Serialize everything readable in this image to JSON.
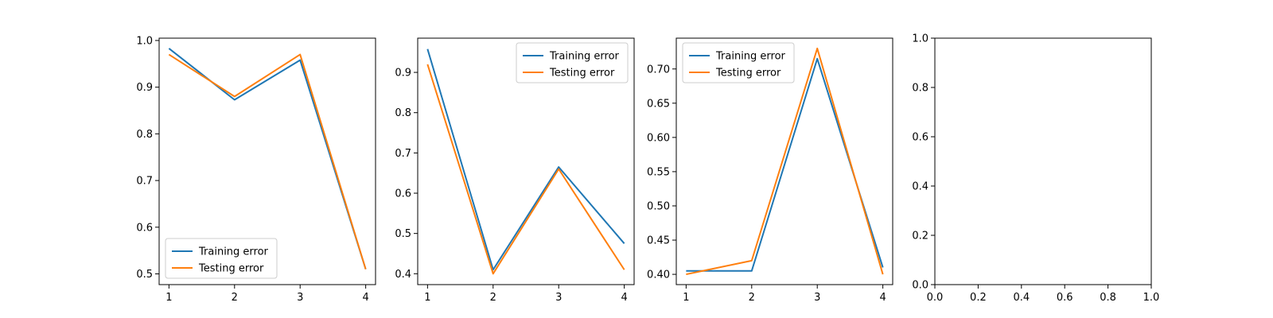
{
  "chart_data": [
    {
      "type": "line",
      "x": [
        1,
        2,
        3,
        4
      ],
      "xlim": [
        0.85,
        4.15
      ],
      "ylim": [
        0.477,
        1.005
      ],
      "xticks": [
        1,
        2,
        3,
        4
      ],
      "yticks": [
        0.5,
        0.6,
        0.7,
        0.8,
        0.9,
        1.0
      ],
      "ytick_labels": [
        "0.5",
        "0.6",
        "0.7",
        "0.8",
        "0.9",
        "1.0"
      ],
      "xtick_labels": [
        "1",
        "2",
        "3",
        "4"
      ],
      "legend_position": "lower-left",
      "series": [
        {
          "name": "Training error",
          "color": "#1f77b4",
          "values": [
            0.983,
            0.873,
            0.958,
            0.51
          ]
        },
        {
          "name": "Testing error",
          "color": "#ff7f0e",
          "values": [
            0.97,
            0.88,
            0.97,
            0.51
          ]
        }
      ]
    },
    {
      "type": "line",
      "x": [
        1,
        2,
        3,
        4
      ],
      "xlim": [
        0.85,
        4.15
      ],
      "ylim": [
        0.373,
        0.985
      ],
      "xticks": [
        1,
        2,
        3,
        4
      ],
      "yticks": [
        0.4,
        0.5,
        0.6,
        0.7,
        0.8,
        0.9
      ],
      "ytick_labels": [
        "0.4",
        "0.5",
        "0.6",
        "0.7",
        "0.8",
        "0.9"
      ],
      "xtick_labels": [
        "1",
        "2",
        "3",
        "4"
      ],
      "legend_position": "upper-right",
      "series": [
        {
          "name": "Training error",
          "color": "#1f77b4",
          "values": [
            0.958,
            0.41,
            0.665,
            0.475
          ]
        },
        {
          "name": "Testing error",
          "color": "#ff7f0e",
          "values": [
            0.92,
            0.4,
            0.66,
            0.41
          ]
        }
      ]
    },
    {
      "type": "line",
      "x": [
        1,
        2,
        3,
        4
      ],
      "xlim": [
        0.85,
        4.15
      ],
      "ylim": [
        0.385,
        0.745
      ],
      "xticks": [
        1,
        2,
        3,
        4
      ],
      "yticks": [
        0.4,
        0.45,
        0.5,
        0.55,
        0.6,
        0.65,
        0.7
      ],
      "ytick_labels": [
        "0.40",
        "0.45",
        "0.50",
        "0.55",
        "0.60",
        "0.65",
        "0.70"
      ],
      "xtick_labels": [
        "1",
        "2",
        "3",
        "4"
      ],
      "legend_position": "upper-left",
      "series": [
        {
          "name": "Training error",
          "color": "#1f77b4",
          "values": [
            0.405,
            0.405,
            0.715,
            0.41
          ]
        },
        {
          "name": "Testing error",
          "color": "#ff7f0e",
          "values": [
            0.4,
            0.42,
            0.73,
            0.4
          ]
        }
      ]
    },
    {
      "type": "line",
      "x": [],
      "xlim": [
        0,
        1
      ],
      "ylim": [
        0,
        1
      ],
      "xticks": [
        0,
        0.2,
        0.4,
        0.6,
        0.8,
        1.0
      ],
      "yticks": [
        0,
        0.2,
        0.4,
        0.6,
        0.8,
        1.0
      ],
      "xtick_labels": [
        "0.0",
        "0.2",
        "0.4",
        "0.6",
        "0.8",
        "1.0"
      ],
      "ytick_labels": [
        "0.0",
        "0.2",
        "0.4",
        "0.6",
        "0.8",
        "1.0"
      ],
      "legend_position": "none",
      "series": []
    }
  ]
}
